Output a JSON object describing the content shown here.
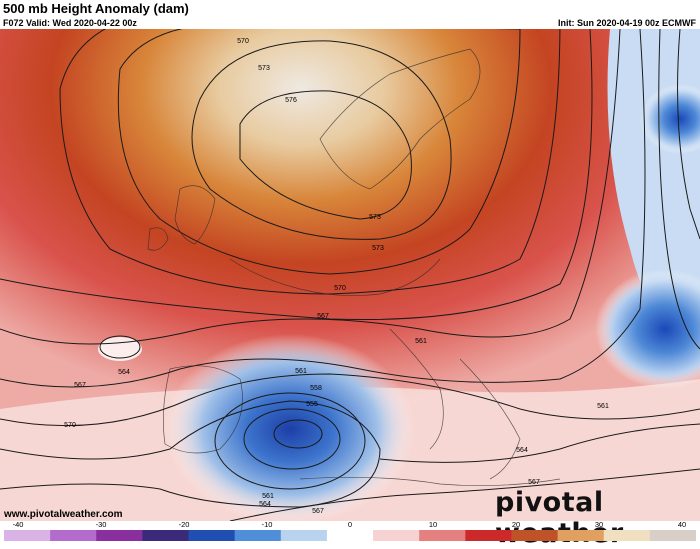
{
  "header": {
    "title": "500 mb Height Anomaly (dam)",
    "valid": "F072 Valid: Wed 2020-04-22 00z",
    "init": "Init: Sun 2020-04-19 00z ECMWF"
  },
  "footer": {
    "website": "www.pivotalweather.com",
    "brand": "pivotal weather"
  },
  "contour_labels": [
    "570",
    "573",
    "576",
    "573",
    "570",
    "567",
    "561",
    "564",
    "567",
    "570",
    "561",
    "558",
    "555",
    "561",
    "564",
    "567",
    "561",
    "564",
    "567",
    "573"
  ],
  "colorbar": {
    "ticks": [
      "-40",
      "-30",
      "-20",
      "-10",
      "0",
      "10",
      "20",
      "30",
      "40"
    ],
    "colors": [
      "#d9b3e6",
      "#b36bcc",
      "#8a2f9e",
      "#3b2a7a",
      "#1f4fb3",
      "#4f8fd9",
      "#b9d3ef",
      "#ffffff",
      "#f6d2d2",
      "#e58080",
      "#cc2a2a",
      "#c0522a",
      "#e0a060",
      "#f0e0c0",
      "#d8d0c8"
    ]
  }
}
